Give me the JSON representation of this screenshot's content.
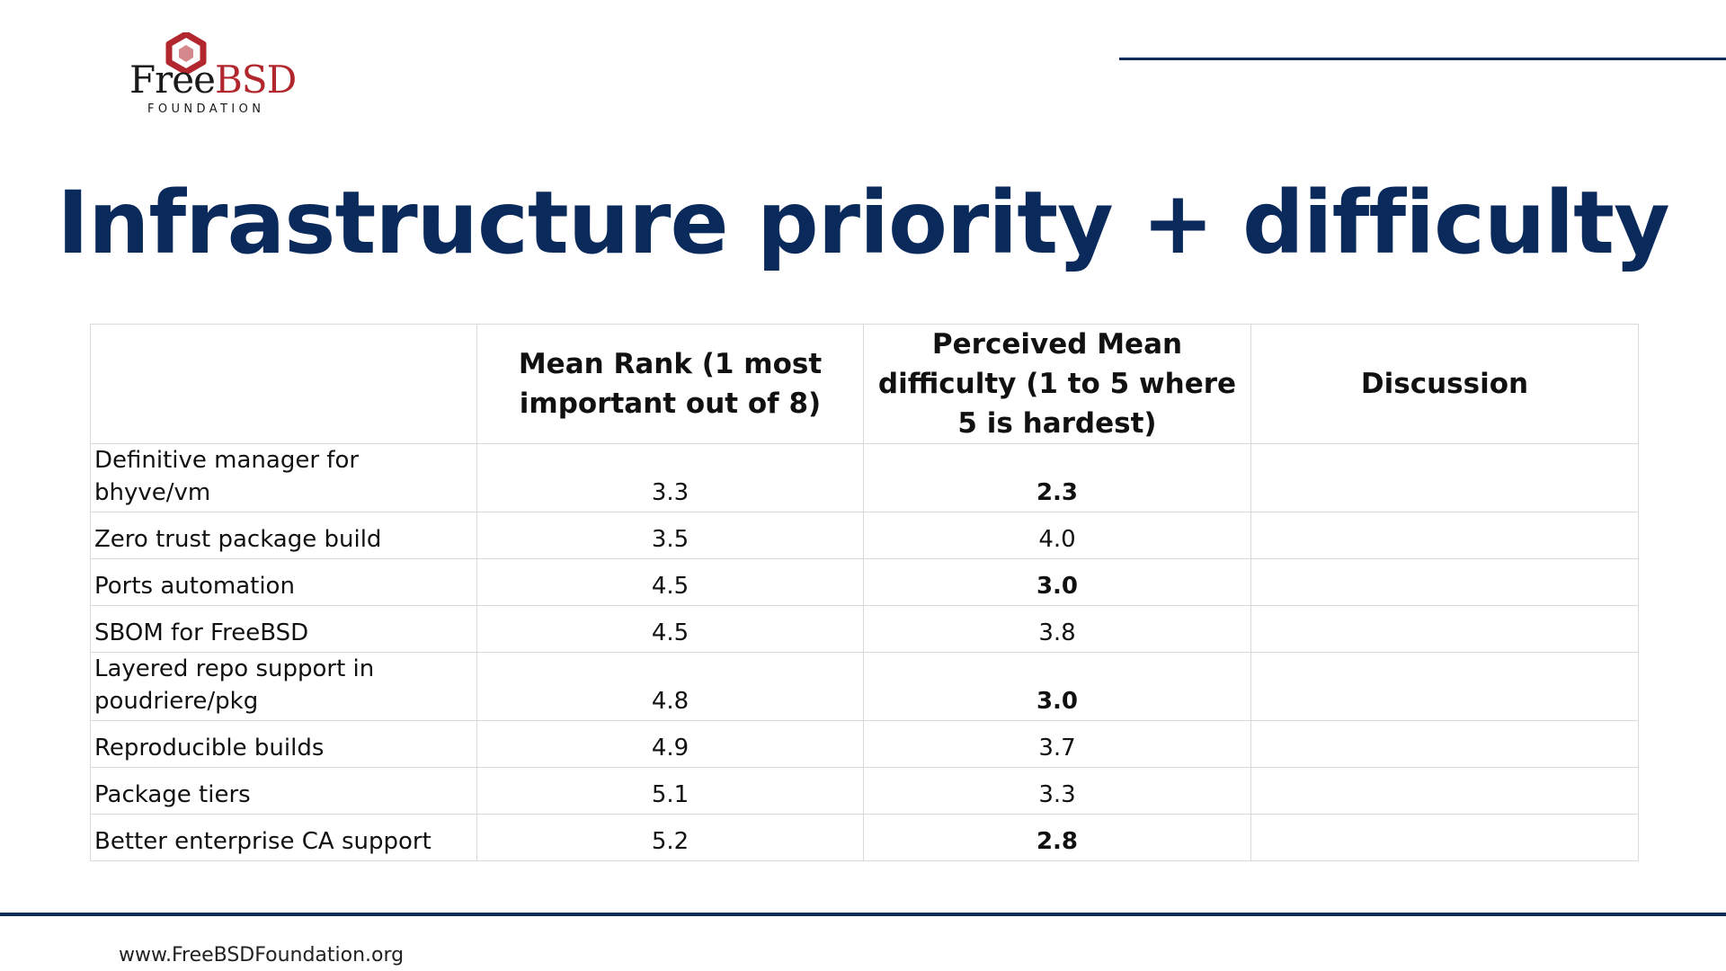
{
  "logo": {
    "word_free": "Free",
    "word_bsd": "BSD",
    "subtitle": "FOUNDATION",
    "icon": "freebsd-hexagon-icon",
    "brand_color": "#b1272d"
  },
  "title": "Infrastructure priority + difficulty",
  "colors": {
    "navy": "#0b2a5c",
    "grid": "#d9d9d9"
  },
  "table": {
    "headers": [
      "",
      "Mean Rank (1 most important out of 8)",
      "Perceived Mean difficulty (1 to 5 where 5 is hardest)",
      "Discussion"
    ],
    "rows": [
      {
        "item": "Definitive manager for bhyve/vm",
        "mean_rank": "3.3",
        "difficulty": "2.3",
        "discussion": ""
      },
      {
        "item": "Zero trust package build",
        "mean_rank": "3.5",
        "difficulty": "4.0",
        "discussion": ""
      },
      {
        "item": "Ports automation",
        "mean_rank": "4.5",
        "difficulty": "3.0",
        "discussion": ""
      },
      {
        "item": "SBOM for FreeBSD",
        "mean_rank": "4.5",
        "difficulty": "3.8",
        "discussion": ""
      },
      {
        "item": "Layered repo support in poudriere/pkg",
        "mean_rank": "4.8",
        "difficulty": "3.0",
        "discussion": ""
      },
      {
        "item": "Reproducible builds",
        "mean_rank": "4.9",
        "difficulty": "3.7",
        "discussion": ""
      },
      {
        "item": "Package tiers",
        "mean_rank": "5.1",
        "difficulty": "3.3",
        "discussion": ""
      },
      {
        "item": "Better enterprise CA support",
        "mean_rank": "5.2",
        "difficulty": "2.8",
        "discussion": ""
      }
    ]
  },
  "footer": {
    "url": "www.FreeBSDFoundation.org"
  }
}
